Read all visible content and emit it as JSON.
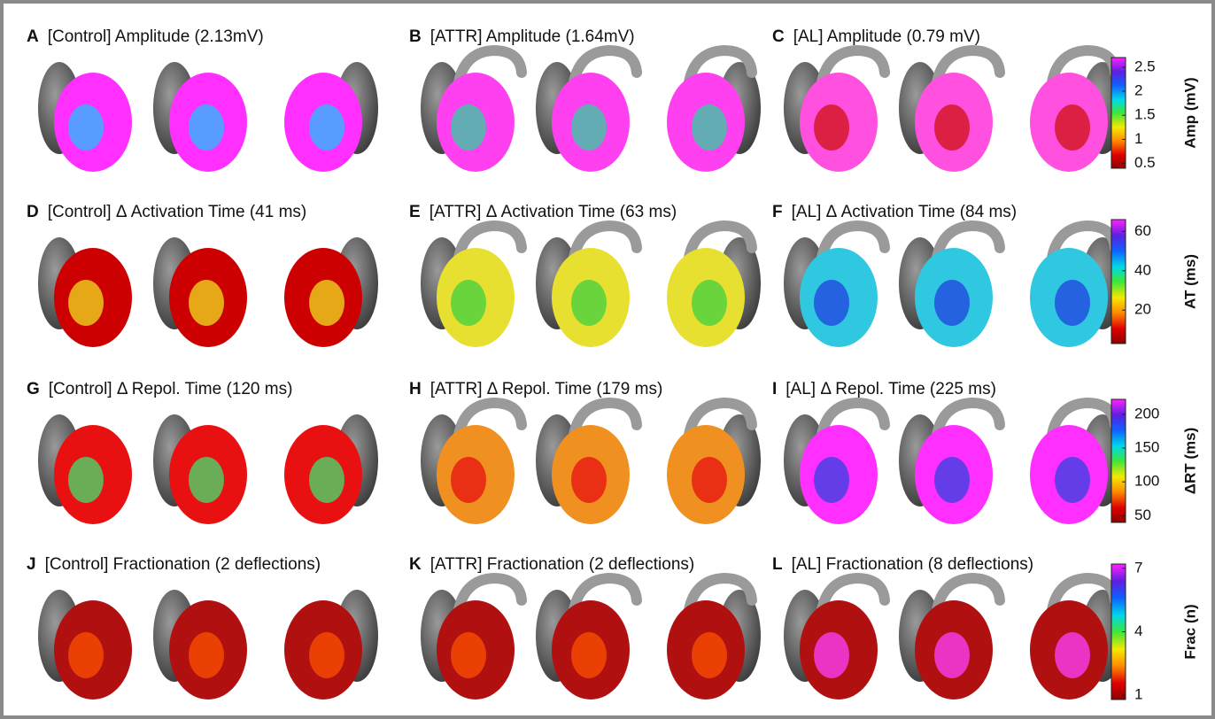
{
  "panels": [
    {
      "letter": "A",
      "title": "[Control] Amplitude (2.13mV)"
    },
    {
      "letter": "B",
      "title": "[ATTR] Amplitude (1.64mV)"
    },
    {
      "letter": "C",
      "title": "[AL] Amplitude (0.79 mV)"
    },
    {
      "letter": "D",
      "title": "[Control] Δ Activation Time (41 ms)"
    },
    {
      "letter": "E",
      "title": "[ATTR] Δ Activation Time (63 ms)"
    },
    {
      "letter": "F",
      "title": "[AL] Δ Activation Time (84 ms)"
    },
    {
      "letter": "G",
      "title": "[Control] Δ Repol. Time (120 ms)"
    },
    {
      "letter": "H",
      "title": "[ATTR] Δ Repol. Time (179 ms)"
    },
    {
      "letter": "I",
      "title": "[AL] Δ Repol. Time (225 ms)"
    },
    {
      "letter": "J",
      "title": "[Control] Fractionation (2 deflections)"
    },
    {
      "letter": "K",
      "title": "[ATTR] Fractionation (2 deflections)"
    },
    {
      "letter": "L",
      "title": "[AL] Fractionation (8 deflections)"
    }
  ],
  "colorbars": [
    {
      "label": "Amp (mV)",
      "range": [
        0.4,
        2.7
      ],
      "ticks": [
        0.5,
        1,
        1.5,
        2,
        2.5
      ]
    },
    {
      "label": "AT (ms)",
      "range": [
        3,
        66
      ],
      "ticks": [
        20,
        40,
        60
      ]
    },
    {
      "label": "ΔRT (ms)",
      "range": [
        40,
        222
      ],
      "ticks": [
        50,
        100,
        150,
        200
      ]
    },
    {
      "label": "Frac (n)",
      "range": [
        0.8,
        7.2
      ],
      "ticks": [
        1,
        4,
        7
      ]
    }
  ]
}
